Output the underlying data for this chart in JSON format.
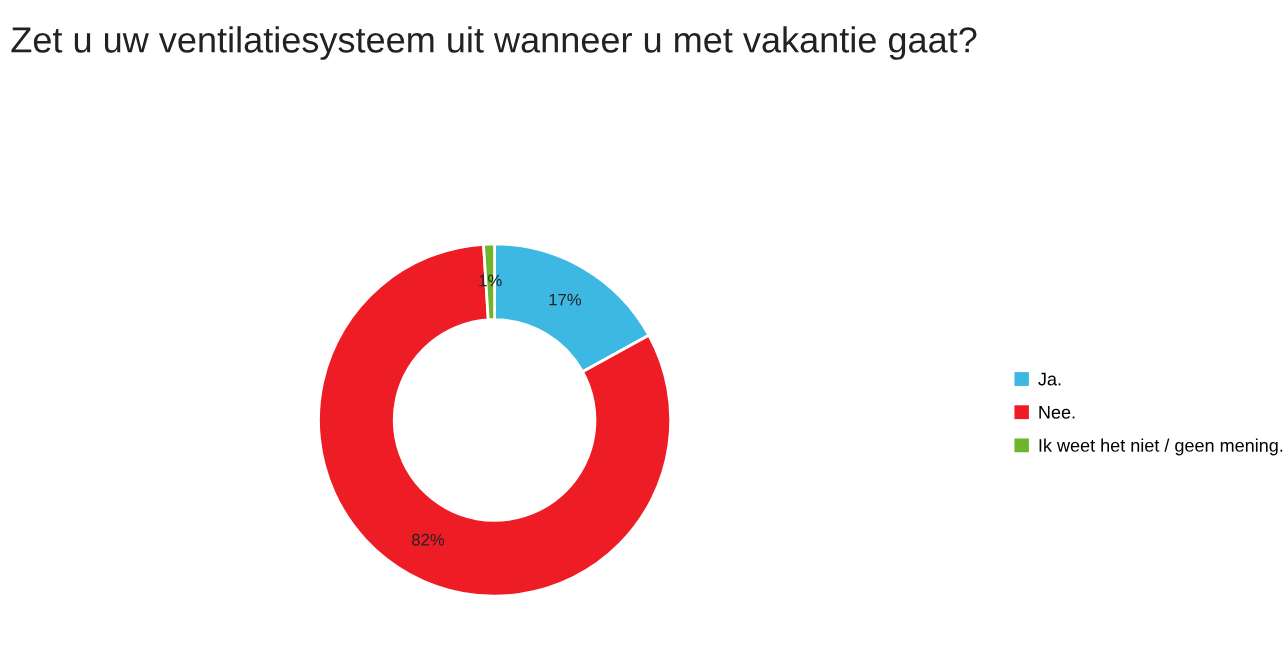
{
  "chart_data": {
    "type": "donut",
    "title": "Zet u uw ventilatiesysteem uit wanneer u met vakantie gaat?",
    "categories": [
      "Ja.",
      "Nee.",
      "Ik weet het niet / geen mening."
    ],
    "values": [
      17,
      82,
      1
    ],
    "colors": [
      "#3cb8e2",
      "#ee1c25",
      "#6cb52d"
    ],
    "value_labels": [
      "17%",
      "82%",
      "1%"
    ],
    "legend": "right"
  }
}
